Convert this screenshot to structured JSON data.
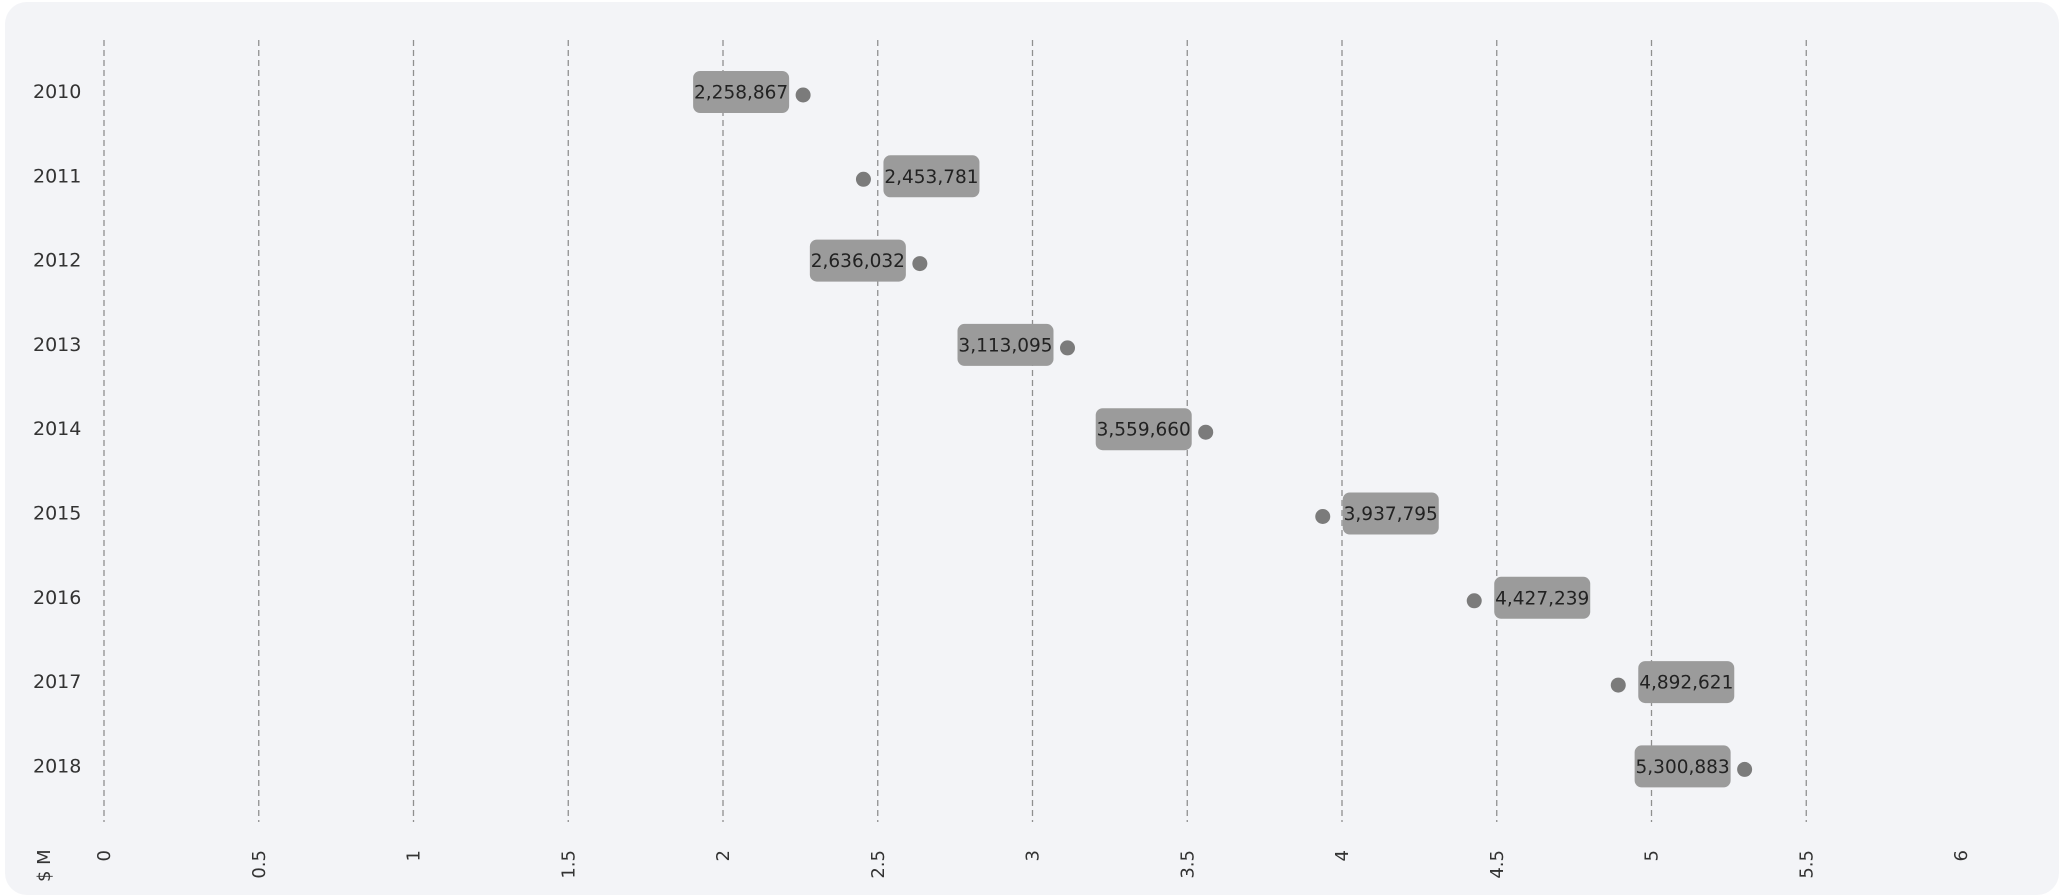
{
  "chart_data": {
    "type": "scatter",
    "orientation": "horizontal",
    "categories": [
      "2010",
      "2011",
      "2012",
      "2013",
      "2014",
      "2015",
      "2016",
      "2017",
      "2018"
    ],
    "values": [
      2258867,
      2453781,
      2636032,
      3113095,
      3559660,
      3937795,
      4427239,
      4892621,
      5300883
    ],
    "data_labels": [
      "2,258,867",
      "2,453,781",
      "2,636,032",
      "3,113,095",
      "3,559,660",
      "3,937,795",
      "4,427,239",
      "4,892,621",
      "5,300,883"
    ],
    "xlabel": "$ M",
    "xlim": [
      0,
      6
    ],
    "x_ticks": [
      "0",
      "0.5",
      "1",
      "1.5",
      "2",
      "2.5",
      "3",
      "3.5",
      "4",
      "4.5",
      "5",
      "5.5",
      "6"
    ],
    "grid": true,
    "colors": {
      "background": "#f3f4f7",
      "point": "#7b7b7b",
      "label_box": "#9b9b9b",
      "grid": "#8f8f8f"
    }
  }
}
